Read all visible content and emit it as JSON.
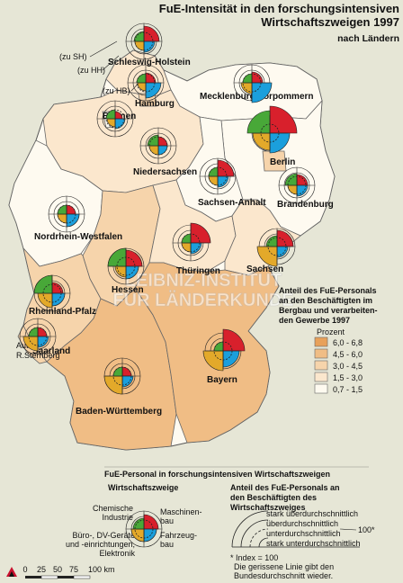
{
  "title": {
    "line1": "FuE-Intensität in den forschungsintensiven",
    "line2": "Wirtschaftszweigen 1997",
    "line3": "nach Ländern"
  },
  "regions": {
    "sh": "Schleswig-Holstein",
    "mv": "Mecklenburg-Vorpommern",
    "hh": "Hamburg",
    "hb": "Bremen",
    "ni": "Niedersachsen",
    "be": "Berlin",
    "bb": "Brandenburg",
    "st": "Sachsen-Anhalt",
    "nw": "Nordrhein-Westfalen",
    "he": "Hessen",
    "th": "Thüringen",
    "sn": "Sachsen",
    "rp": "Rheinland-Pfalz",
    "sl": "Saarland",
    "by": "Bayern",
    "bw": "Baden-Württemberg"
  },
  "refs": {
    "sh": "(zu SH)",
    "hh": "(zu HH)",
    "hb": "(zu HB)"
  },
  "author": {
    "label": "Autor:",
    "name": "R.Sternberg"
  },
  "watermark": {
    "line1": "LEIBNIZ-INSTITUT",
    "line2": "FÜR LÄNDERKUNDE"
  },
  "legend_choro": {
    "title1": "Anteil des FuE-Personals",
    "title2": "an den Beschäftigten im",
    "title3": "Bergbau und verarbeiten-",
    "title4": "den Gewerbe 1997",
    "unit": "Prozent",
    "classes": [
      {
        "label": "6,0 - 6,8",
        "color": "#e8a15a"
      },
      {
        "label": "4,5 - 6,0",
        "color": "#f0bd85"
      },
      {
        "label": "3,0 - 4,5",
        "color": "#f6d4ab"
      },
      {
        "label": "1,5 - 3,0",
        "color": "#fbe7cd"
      },
      {
        "label": "0,7 - 1,5",
        "color": "#fefaf0"
      }
    ]
  },
  "legend_symbol": {
    "title": "FuE-Personal in forschungsintensiven Wirtschaftszweigen",
    "branches_title": "Wirtschaftszweige",
    "chem1": "Chemische",
    "chem2": "Industrie",
    "masch1": "Maschinen-",
    "masch2": "bau",
    "buero1": "Büro-, DV-Geräte",
    "buero2": "und -einrichtungen,",
    "buero3": "Elektronik",
    "fahr1": "Fahrzeug-",
    "fahr2": "bau",
    "share1": "Anteil des FuE-Personals an",
    "share2": "den Beschäftigten des",
    "share3": "Wirtschaftszweiges",
    "levels": [
      "stark überdurchschnittlich",
      "überdurchschnittlich",
      "unterdurchschnittlich",
      "stark unterdurchschnittlich"
    ],
    "index_mark": "100*",
    "note1": "* Index = 100",
    "note2": "Die gerissene Linie gibt den",
    "note3": "Bundesdurchschnitt wieder."
  },
  "branch_colors": {
    "chemie": "#d8202c",
    "maschinenbau": "#e3a92a",
    "elektronik": "#1b9fdc",
    "fahrzeugbau": "#48a838"
  },
  "scale_bar": {
    "ticks": [
      "0",
      "25",
      "50",
      "75",
      "100 km"
    ]
  }
}
